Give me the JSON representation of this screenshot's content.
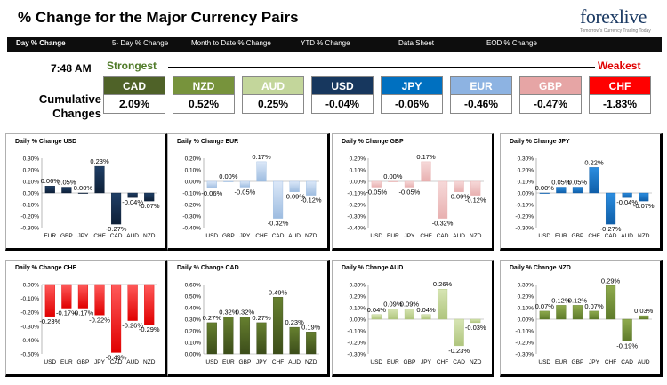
{
  "header": {
    "title": "% Change for the Major Currency Pairs",
    "logo_text": "forexlive",
    "logo_tagline": "Tomorrow's Currency Trading Today"
  },
  "tabs": [
    {
      "label": "Day % Change",
      "active": true
    },
    {
      "label": "5- Day % Change",
      "active": false
    },
    {
      "label": "Month to Date % Change",
      "active": false
    },
    {
      "label": "YTD % Change",
      "active": false
    },
    {
      "label": "Data Sheet",
      "active": false
    },
    {
      "label": "EOD % Change",
      "active": false
    }
  ],
  "summary": {
    "time": "7:48 AM",
    "strongest_label": "Strongest",
    "weakest_label": "Weakest",
    "cumulative_label_line1": "Cumulative",
    "cumulative_label_line2": "Changes",
    "currencies": [
      {
        "code": "CAD",
        "value": "2.09%",
        "color": "#4f6228"
      },
      {
        "code": "NZD",
        "value": "0.52%",
        "color": "#77933c"
      },
      {
        "code": "AUD",
        "value": "0.25%",
        "color": "#c3d69b"
      },
      {
        "code": "USD",
        "value": "-0.04%",
        "color": "#17375e"
      },
      {
        "code": "JPY",
        "value": "-0.06%",
        "color": "#0070c0"
      },
      {
        "code": "EUR",
        "value": "-0.46%",
        "color": "#8db3e2"
      },
      {
        "code": "GBP",
        "value": "-0.47%",
        "color": "#e6a5a5"
      },
      {
        "code": "CHF",
        "value": "-1.83%",
        "color": "#ff0000"
      }
    ]
  },
  "chart_data": [
    {
      "type": "bar",
      "title": "Daily % Change USD",
      "categories": [
        "EUR",
        "GBP",
        "JPY",
        "CHF",
        "CAD",
        "AUD",
        "NZD"
      ],
      "values": [
        0.06,
        0.05,
        0.0,
        0.23,
        -0.27,
        -0.04,
        -0.07
      ],
      "labels": [
        "0.06%",
        "0.05%",
        "0.00%",
        "0.23%",
        "-0.27%",
        "-0.04%",
        "-0.07%"
      ],
      "ylim": [
        -0.3,
        0.3
      ],
      "ticks": [
        "0.30%",
        "0.20%",
        "0.10%",
        "0.00%",
        "-0.10%",
        "-0.20%",
        "-0.30%"
      ],
      "colors": {
        "top": "#1f3f66",
        "bottom": "#0e2038"
      }
    },
    {
      "type": "bar",
      "title": "Daily % Change EUR",
      "categories": [
        "USD",
        "GBP",
        "JPY",
        "CHF",
        "CAD",
        "AUD",
        "NZD"
      ],
      "values": [
        -0.06,
        0.0,
        -0.05,
        0.17,
        -0.32,
        -0.09,
        -0.12
      ],
      "labels": [
        "-0.06%",
        "0.00%",
        "-0.05%",
        "0.17%",
        "-0.32%",
        "-0.09%",
        "-0.12%"
      ],
      "ylim": [
        -0.4,
        0.2
      ],
      "ticks": [
        "0.20%",
        "0.10%",
        "0.00%",
        "-0.10%",
        "-0.20%",
        "-0.30%",
        "-0.40%"
      ],
      "colors": {
        "top": "#dce8f8",
        "bottom": "#9dbce0"
      }
    },
    {
      "type": "bar",
      "title": "Daily % Change GBP",
      "categories": [
        "USD",
        "EUR",
        "JPY",
        "CHF",
        "CAD",
        "AUD",
        "NZD"
      ],
      "values": [
        -0.05,
        0.0,
        -0.05,
        0.17,
        -0.32,
        -0.09,
        -0.12
      ],
      "labels": [
        "-0.05%",
        "0.00%",
        "-0.05%",
        "0.17%",
        "-0.32%",
        "-0.09%",
        "-0.12%"
      ],
      "ylim": [
        -0.4,
        0.2
      ],
      "ticks": [
        "0.20%",
        "0.10%",
        "0.00%",
        "-0.10%",
        "-0.20%",
        "-0.30%",
        "-0.40%"
      ],
      "colors": {
        "top": "#f6d9d9",
        "bottom": "#e8b0b0"
      }
    },
    {
      "type": "bar",
      "title": "Daily % Change JPY",
      "categories": [
        "USD",
        "EUR",
        "GBP",
        "CHF",
        "CAD",
        "AUD",
        "NZD"
      ],
      "values": [
        0.0,
        0.05,
        0.05,
        0.22,
        -0.27,
        -0.04,
        -0.07
      ],
      "labels": [
        "0.00%",
        "0.05%",
        "0.05%",
        "0.22%",
        "-0.27%",
        "-0.04%",
        "-0.07%"
      ],
      "ylim": [
        -0.3,
        0.3
      ],
      "ticks": [
        "0.30%",
        "0.20%",
        "0.10%",
        "0.00%",
        "-0.10%",
        "-0.20%",
        "-0.30%"
      ],
      "colors": {
        "top": "#2c8ee0",
        "bottom": "#0f5ea8"
      }
    },
    {
      "type": "bar",
      "title": "Daily % Change CHF",
      "categories": [
        "USD",
        "EUR",
        "GBP",
        "JPY",
        "CAD",
        "AUD",
        "NZD"
      ],
      "values": [
        -0.23,
        -0.17,
        -0.17,
        -0.22,
        -0.49,
        -0.26,
        -0.29
      ],
      "labels": [
        "-0.23%",
        "-0.17%",
        "-0.17%",
        "-0.22%",
        "-0.49%",
        "-0.26%",
        "-0.29%"
      ],
      "ylim": [
        -0.5,
        0.0
      ],
      "ticks": [
        "0.00%",
        "-0.10%",
        "-0.20%",
        "-0.30%",
        "-0.40%",
        "-0.50%"
      ],
      "colors": {
        "top": "#ff5a5a",
        "bottom": "#e00000"
      }
    },
    {
      "type": "bar",
      "title": "Daily % Change CAD",
      "categories": [
        "USD",
        "EUR",
        "GBP",
        "JPY",
        "CHF",
        "AUD",
        "NZD"
      ],
      "values": [
        0.27,
        0.32,
        0.32,
        0.27,
        0.49,
        0.23,
        0.19
      ],
      "labels": [
        "0.27%",
        "0.32%",
        "0.32%",
        "0.27%",
        "0.49%",
        "0.23%",
        "0.19%"
      ],
      "ylim": [
        0.0,
        0.6
      ],
      "ticks": [
        "0.60%",
        "0.50%",
        "0.40%",
        "0.30%",
        "0.20%",
        "0.10%",
        "0.00%"
      ],
      "colors": {
        "top": "#66802f",
        "bottom": "#3c4d1a"
      }
    },
    {
      "type": "bar",
      "title": "Daily % Change AUD",
      "categories": [
        "USD",
        "EUR",
        "GBP",
        "JPY",
        "CHF",
        "CAD",
        "NZD"
      ],
      "values": [
        0.04,
        0.09,
        0.09,
        0.04,
        0.26,
        -0.23,
        -0.03
      ],
      "labels": [
        "0.04%",
        "0.09%",
        "0.09%",
        "0.04%",
        "0.26%",
        "-0.23%",
        "-0.03%"
      ],
      "ylim": [
        -0.3,
        0.3
      ],
      "ticks": [
        "0.30%",
        "0.20%",
        "0.10%",
        "0.00%",
        "-0.10%",
        "-0.20%",
        "-0.30%"
      ],
      "colors": {
        "top": "#d7e5b4",
        "bottom": "#afc57d"
      }
    },
    {
      "type": "bar",
      "title": "Daily % Change NZD",
      "categories": [
        "USD",
        "EUR",
        "GBP",
        "JPY",
        "CHF",
        "CAD",
        "AUD"
      ],
      "values": [
        0.07,
        0.12,
        0.12,
        0.07,
        0.29,
        -0.19,
        0.03
      ],
      "labels": [
        "0.07%",
        "0.12%",
        "0.12%",
        "0.07%",
        "0.29%",
        "-0.19%",
        "0.03%"
      ],
      "ylim": [
        -0.3,
        0.3
      ],
      "ticks": [
        "0.30%",
        "0.20%",
        "0.10%",
        "0.00%",
        "-0.10%",
        "-0.20%",
        "-0.30%"
      ],
      "colors": {
        "top": "#8fab4e",
        "bottom": "#5d7a2a"
      }
    }
  ]
}
